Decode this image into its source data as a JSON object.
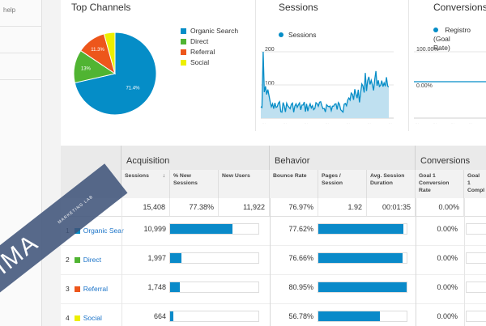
{
  "sidebar": {
    "help_label": "help"
  },
  "top_channels": {
    "title": "Top Channels",
    "legend": [
      {
        "label": "Organic Search",
        "color": "#058dc7"
      },
      {
        "label": "Direct",
        "color": "#50b432"
      },
      {
        "label": "Referral",
        "color": "#ed561b"
      },
      {
        "label": "Social",
        "color": "#edef00"
      }
    ],
    "slices": [
      {
        "label": "71.4%",
        "value": 71.4,
        "color": "#058dc7"
      },
      {
        "label": "13%",
        "value": 13.0,
        "color": "#50b432"
      },
      {
        "label": "11.3%",
        "value": 11.3,
        "color": "#ed561b"
      },
      {
        "label": "",
        "value": 4.3,
        "color": "#edef00"
      }
    ]
  },
  "sessions_card": {
    "title": "Sessions",
    "legend": "Sessions",
    "ytick_top": "200",
    "ytick_bottom": "100"
  },
  "conversions_card": {
    "title": "Conversions",
    "legend": "Registro (Goal 1 Conversion Rate)",
    "legend_line1": "Registro (Goal",
    "legend_line2": "Rate)",
    "ytick_top": "100.00%",
    "ytick_bottom": "0.00%"
  },
  "table": {
    "groups": {
      "acquisition": "Acquisition",
      "behavior": "Behavior",
      "conversions": "Conversions"
    },
    "columns": {
      "sessions": "Sessions",
      "new_sessions": "% New Sessions",
      "new_users": "New Users",
      "bounce": "Bounce Rate",
      "pages": "Pages / Session",
      "duration": "Avg. Session Duration",
      "goal1": "Goal 1 Conversion Rate",
      "goal1_comp": "Goal 1 Compl"
    },
    "totals": {
      "sessions": "15,408",
      "new_sessions": "77.38%",
      "new_users": "11,922",
      "bounce": "76.97%",
      "pages": "1.92",
      "duration": "00:01:35",
      "goal1": "0.00%"
    },
    "rows": [
      {
        "num": "1",
        "label": "Organic Sear",
        "color": "#058dc7",
        "sessions": "10,999",
        "new_fill": 0.71,
        "bounce": "77.62%",
        "bounce_fill": 0.96,
        "goal1": "0.00%"
      },
      {
        "num": "2",
        "label": "Direct",
        "color": "#50b432",
        "sessions": "1,997",
        "new_fill": 0.13,
        "bounce": "76.66%",
        "bounce_fill": 0.95,
        "goal1": "0.00%"
      },
      {
        "num": "3",
        "label": "Referral",
        "color": "#ed561b",
        "sessions": "1,748",
        "new_fill": 0.11,
        "bounce": "80.95%",
        "bounce_fill": 1.0,
        "goal1": "0.00%"
      },
      {
        "num": "4",
        "label": "Social",
        "color": "#edef00",
        "sessions": "664",
        "new_fill": 0.04,
        "bounce": "56.78%",
        "bounce_fill": 0.7,
        "goal1": "0.00%"
      }
    ]
  },
  "watermark": {
    "text": "IGIMA",
    "sub": "MARKETING LAB"
  },
  "colors": {
    "accent": "#058dc7",
    "bar": "#0a8ac9",
    "link": "#1a73c8"
  }
}
